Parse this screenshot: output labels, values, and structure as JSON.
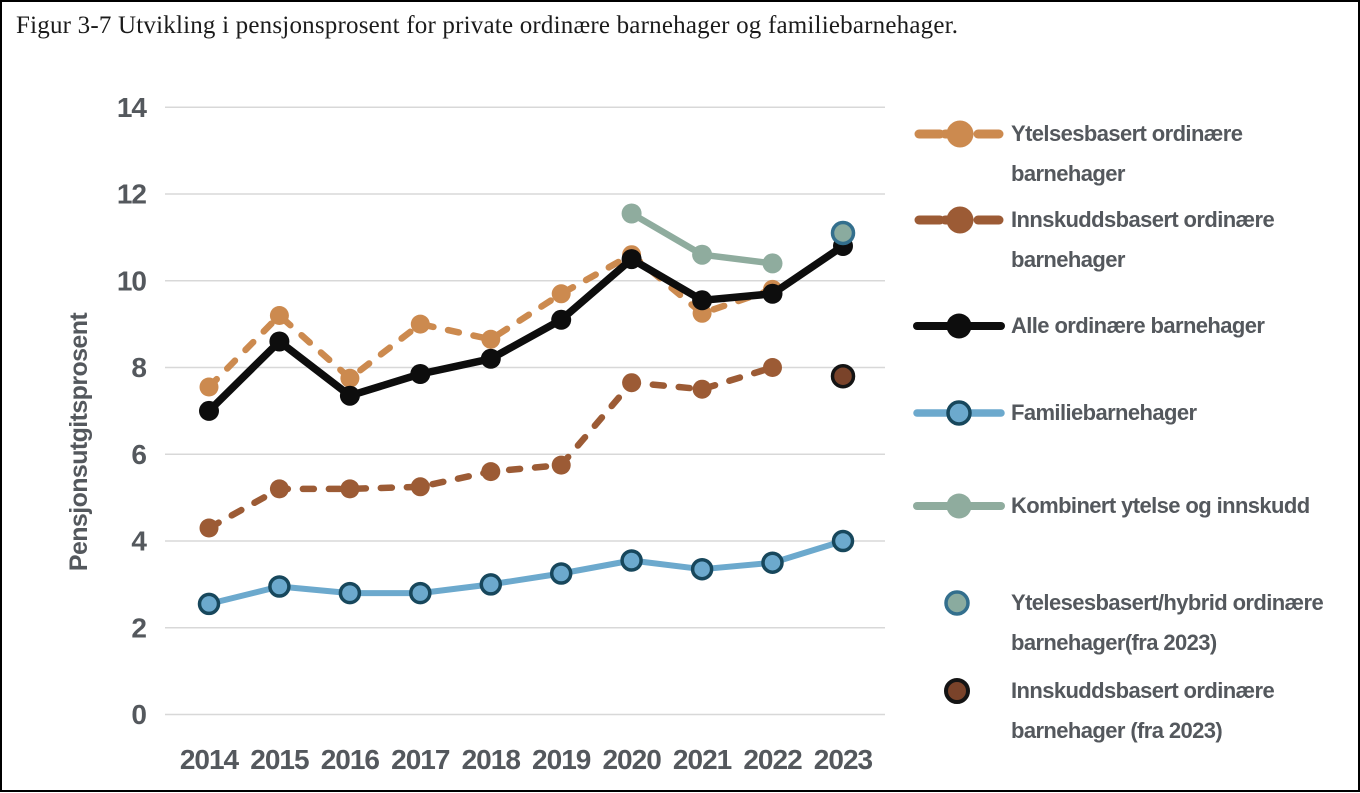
{
  "figure": {
    "title": "Figur 3-7 Utvikling i pensjonsprosent for private ordinære barnehager og familiebarnehager."
  },
  "chart_data": {
    "type": "line",
    "title": "Figur 3-7 Utvikling i pensjonsprosent for private ordinære barnehager og familiebarnehager.",
    "categories": [
      "2014",
      "2015",
      "2016",
      "2017",
      "2018",
      "2019",
      "2020",
      "2021",
      "2022",
      "2023"
    ],
    "xlabel": "",
    "ylabel": "Pensjonsutgitsprosent",
    "ylim": [
      0,
      14
    ],
    "yticks": [
      0,
      2,
      4,
      6,
      8,
      10,
      12,
      14
    ],
    "grid": "horizontal",
    "legend_position": "right",
    "draw_order": [
      0,
      1,
      4,
      2,
      3,
      5,
      6
    ],
    "series": [
      {
        "name": "Ytelsesbasert ordinære barnehager",
        "color": "#cc8a4f",
        "dash": true,
        "width": 6.5,
        "marker": "filled",
        "marker_r": 9.5,
        "values": [
          7.55,
          9.2,
          7.75,
          9.0,
          8.65,
          9.7,
          10.6,
          9.25,
          9.8,
          null
        ]
      },
      {
        "name": "Innskuddsbasert ordinære barnehager",
        "color": "#9c5b35",
        "dash": true,
        "width": 6.5,
        "marker": "filled",
        "marker_r": 9.5,
        "values": [
          4.3,
          5.2,
          5.2,
          5.25,
          5.6,
          5.75,
          7.65,
          7.5,
          8.0,
          null
        ]
      },
      {
        "name": "Alle ordinære barnehager",
        "color": "#0d0d0d",
        "dash": false,
        "width": 7.5,
        "marker": "filled",
        "marker_r": 10,
        "values": [
          7.0,
          8.6,
          7.35,
          7.85,
          8.2,
          9.1,
          10.5,
          9.55,
          9.7,
          10.8
        ]
      },
      {
        "name": "Familiebarnehager",
        "color": "#6ca9cd",
        "dash": false,
        "width": 6,
        "marker": "ring",
        "marker_ring": "#17475c",
        "marker_r": 9.5,
        "values": [
          2.55,
          2.95,
          2.8,
          2.8,
          3.0,
          3.25,
          3.55,
          3.35,
          3.5,
          4.0
        ]
      },
      {
        "name": "Kombinert ytelse og innskudd",
        "color": "#8fac9e",
        "dash": false,
        "width": 6.5,
        "marker": "filled",
        "marker_r": 10,
        "values": [
          null,
          null,
          null,
          null,
          null,
          null,
          11.55,
          10.6,
          10.4,
          null
        ]
      },
      {
        "name": "Ytelesesbasert/hybrid ordinære barnehager(fra 2023)",
        "color": "#8aab9f",
        "dash": false,
        "width": 0,
        "marker": "ring",
        "marker_ring": "#336f8d",
        "marker_r": 10.5,
        "values": [
          null,
          null,
          null,
          null,
          null,
          null,
          null,
          null,
          null,
          11.1
        ]
      },
      {
        "name": "Innskuddsbasert ordinære barnehager (fra 2023)",
        "color": "#7a432a",
        "dash": false,
        "width": 0,
        "marker": "ring",
        "marker_ring": "#141414",
        "marker_r": 10.5,
        "values": [
          null,
          null,
          null,
          null,
          null,
          null,
          null,
          null,
          null,
          7.8
        ]
      }
    ]
  },
  "colors": {
    "axis_text": "#54585d",
    "gridline": "#d8d8d8",
    "border": "#000000",
    "background": "#ffffff"
  }
}
